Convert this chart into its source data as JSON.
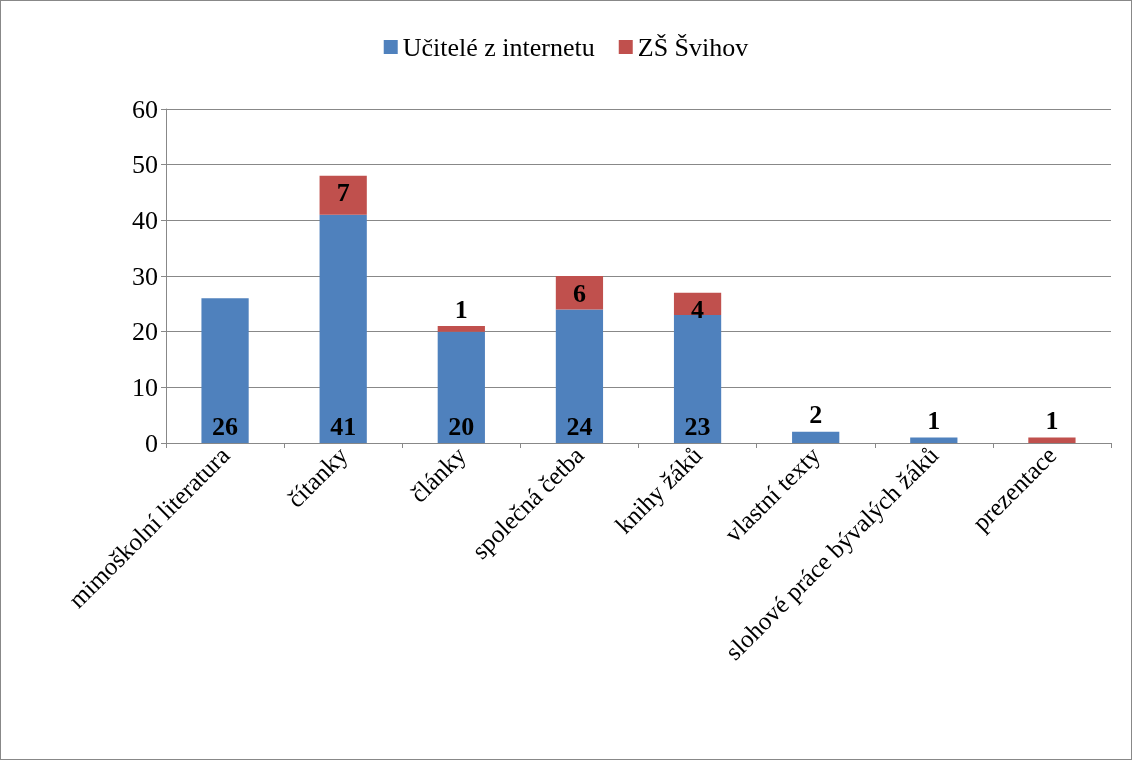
{
  "chart_data": {
    "type": "bar",
    "stacked": true,
    "categories": [
      "mimoškolní literatura",
      "čítanky",
      "články",
      "společná četba",
      "knihy žáků",
      "vlastní texty",
      "slohové práce bývalých žáků",
      "prezentace"
    ],
    "series": [
      {
        "name": "Učitelé z internetu",
        "color": "#4f81bd",
        "values": [
          26,
          41,
          20,
          24,
          23,
          2,
          1,
          0
        ],
        "value_labels": [
          "26",
          "41",
          "20",
          "24",
          "23",
          "2",
          "1",
          null
        ]
      },
      {
        "name": "ZŠ Švihov",
        "color": "#c0504d",
        "values": [
          0,
          7,
          1,
          6,
          4,
          0,
          0,
          1
        ],
        "value_labels": [
          null,
          "7",
          "1",
          "6",
          "4",
          null,
          null,
          "1"
        ]
      }
    ],
    "ylim": [
      0,
      60
    ],
    "yticks": [
      0,
      10,
      20,
      30,
      40,
      50,
      60
    ],
    "grid": "y",
    "legend": "top"
  }
}
